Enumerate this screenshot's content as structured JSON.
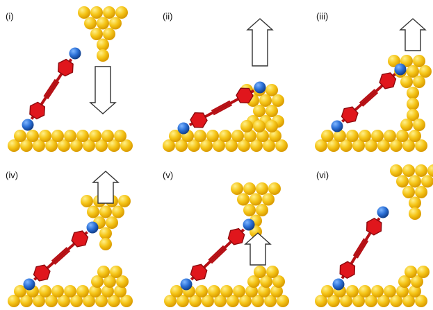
{
  "colors": {
    "gold_light": "#fff08a",
    "gold_mid": "#f5c518",
    "gold_dark": "#d99a00",
    "sulfur_light": "#7fb6ff",
    "sulfur_mid": "#2a6fd6",
    "sulfur_dark": "#123f8a",
    "ring_fill": "#e0161c",
    "ring_edge": "#8c0a0e",
    "linker": "#b50f14",
    "arrow_stroke": "#333333",
    "arrow_fill": "#ffffff"
  },
  "panels": [
    {
      "label": "(i)",
      "arrow": "down",
      "stage": "approach"
    },
    {
      "label": "(ii)",
      "arrow": "up",
      "stage": "contact"
    },
    {
      "label": "(iii)",
      "arrow": "up",
      "stage": "chain-pulled"
    },
    {
      "label": "(iv)",
      "arrow": "up",
      "stage": "junction"
    },
    {
      "label": "(v)",
      "arrow": "up",
      "stage": "tip-withdraw"
    },
    {
      "label": "(vi)",
      "arrow": "none",
      "stage": "broken"
    }
  ]
}
